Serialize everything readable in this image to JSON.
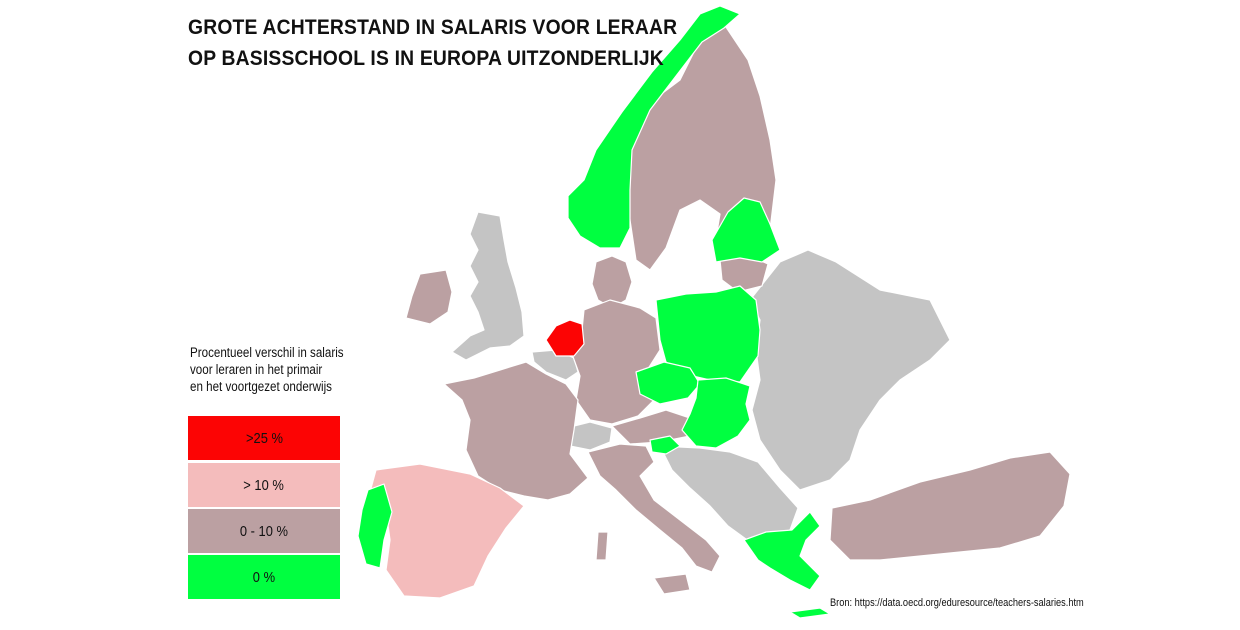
{
  "title": {
    "line1": "GROTE ACHTERSTAND IN SALARIS VOOR LERAAR",
    "line2": "OP BASISSCHOOL IS IN EUROPA UITZONDERLIJK"
  },
  "legend": {
    "title_lines": [
      "Procentueel verschil in salaris",
      "voor leraren in het primair",
      "en het voortgezet onderwijs"
    ],
    "items": [
      {
        "label": ">25 %",
        "color": "#fc0404"
      },
      {
        "label": "> 10 %",
        "color": "#f4bcbc"
      },
      {
        "label": "0 - 10 %",
        "color": "#bba0a2"
      },
      {
        "label": "0 %",
        "color": "#00ff40"
      }
    ],
    "no_data_color": "#c4c4c4"
  },
  "source": "Bron: https://data.oecd.org/eduresource/teachers-salaries.htm",
  "categories": {
    "netherlands": ">25 %",
    "spain": "> 10 %",
    "france": "0 - 10 %",
    "germany": "0 - 10 %",
    "italy": "0 - 10 %",
    "ireland": "0 - 10 %",
    "sweden": "0 - 10 %",
    "finland": "0 - 10 %",
    "denmark": "0 - 10 %",
    "austria": "0 - 10 %",
    "lithuania": "0 - 10 %",
    "turkey": "0 - 10 %",
    "norway": "0 %",
    "portugal": "0 %",
    "poland": "0 %",
    "czechia": "0 %",
    "slovakia": "0 %",
    "hungary": "0 %",
    "slovenia": "0 %",
    "greece": "0 %",
    "estonia": "0 %",
    "latvia": "0 %"
  }
}
